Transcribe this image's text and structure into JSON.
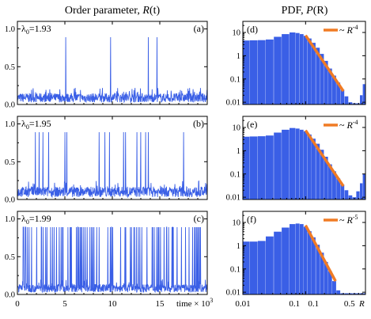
{
  "colors": {
    "series": "#3a5fe6",
    "fit": "#f07b24",
    "axis": "#000000"
  },
  "left_column": {
    "title_text": "Order parameter, ",
    "title_sym": "R",
    "title_arg": "(t)"
  },
  "right_column": {
    "title_text": "PDF, ",
    "title_sym": "P",
    "title_arg": "(R)"
  },
  "chart_data": [
    {
      "type": "line",
      "panel": "a",
      "label": "(a)",
      "lambda_label": "λ",
      "lambda_sub": "0",
      "lambda_value": "=1.93",
      "xlabel": "time × 10",
      "xlabel_exp": "3",
      "xlim": [
        0,
        20
      ],
      "ylim": [
        0,
        1.1
      ],
      "x_ticks": [
        "0",
        "5",
        "10",
        "15"
      ],
      "y_ticks": [
        "0.0",
        "0.5",
        "1.0"
      ],
      "baseline_mean": 0.07,
      "noise_max": 0.22,
      "spike_height": 0.89,
      "spikes_x": [
        5.1,
        9.8,
        13.8,
        14.7
      ],
      "secondary_peaks": [
        {
          "x": 3.4,
          "y": 0.2
        },
        {
          "x": 12.4,
          "y": 0.22
        },
        {
          "x": 17.3,
          "y": 0.18
        },
        {
          "x": 19.2,
          "y": 0.17
        }
      ]
    },
    {
      "type": "line",
      "panel": "b",
      "label": "(b)",
      "lambda_label": "λ",
      "lambda_sub": "0",
      "lambda_value": "=1.95",
      "xlim": [
        0,
        20
      ],
      "ylim": [
        0,
        1.1
      ],
      "x_ticks": [
        "0",
        "5",
        "10",
        "15"
      ],
      "y_ticks": [
        "0.0",
        "0.5",
        "1.0"
      ],
      "baseline_mean": 0.08,
      "noise_max": 0.25,
      "spike_height": 0.89,
      "spikes_x": [
        1.9,
        2.3,
        2.7,
        3.3,
        5.0,
        5.2,
        8.6,
        9.2,
        9.7,
        11.2,
        11.4,
        12.6,
        13.0,
        13.5,
        13.8,
        17.5
      ]
    },
    {
      "type": "line",
      "panel": "c",
      "label": "(c)",
      "lambda_label": "λ",
      "lambda_sub": "0",
      "lambda_value": "=1.99",
      "xlim": [
        0,
        20
      ],
      "ylim": [
        0,
        1.1
      ],
      "x_ticks": [
        "0",
        "5",
        "10",
        "15"
      ],
      "x_tick_labels_shown": true,
      "y_ticks": [
        "0.0",
        "0.5",
        "1.0"
      ],
      "baseline_mean": 0.07,
      "noise_max": 0.2,
      "spike_height": 0.89,
      "spike_count_approx": 95
    },
    {
      "type": "bar",
      "panel": "d",
      "label": "(d)",
      "legend": "~ ",
      "legend_sym": "R",
      "legend_exp": "-4",
      "x_scale": "log",
      "y_scale": "log",
      "xlim": [
        0.01,
        0.9
      ],
      "ylim": [
        0.008,
        30
      ],
      "y_ticks": [
        "0.01",
        "0.1",
        "1",
        "10"
      ],
      "bins_R": [
        0.011,
        0.015,
        0.02,
        0.027,
        0.036,
        0.048,
        0.064,
        0.075,
        0.087,
        0.1,
        0.116,
        0.135,
        0.157,
        0.183,
        0.212,
        0.247,
        0.287,
        0.334,
        0.388,
        0.45,
        0.52,
        0.6,
        0.69,
        0.78,
        0.85
      ],
      "density": [
        4.5,
        4.6,
        4.7,
        5.0,
        6.5,
        8.5,
        10.0,
        9.5,
        8.5,
        7.2,
        5.5,
        3.6,
        2.2,
        1.2,
        0.6,
        0.28,
        0.14,
        0.07,
        0.035,
        0.018,
        0.01,
        0.009,
        0.009,
        0.02,
        0.06
      ],
      "fit": {
        "exponent": -4,
        "R": [
          0.1,
          0.4
        ],
        "P": [
          7.5,
          0.03
        ]
      }
    },
    {
      "type": "bar",
      "panel": "e",
      "label": "(e)",
      "legend": "~ ",
      "legend_sym": "R",
      "legend_exp": "-4",
      "x_scale": "log",
      "y_scale": "log",
      "xlim": [
        0.01,
        0.9
      ],
      "ylim": [
        0.008,
        30
      ],
      "y_ticks": [
        "0.01",
        "0.1",
        "1",
        "10"
      ],
      "bins_R": [
        0.011,
        0.015,
        0.02,
        0.027,
        0.036,
        0.048,
        0.064,
        0.075,
        0.087,
        0.1,
        0.116,
        0.135,
        0.157,
        0.183,
        0.212,
        0.247,
        0.287,
        0.334,
        0.388,
        0.45,
        0.52,
        0.6,
        0.69,
        0.78,
        0.85
      ],
      "density": [
        4.0,
        4.1,
        4.2,
        4.5,
        6.0,
        8.0,
        9.5,
        9.0,
        8.0,
        6.8,
        5.0,
        3.3,
        2.0,
        1.1,
        0.55,
        0.26,
        0.13,
        0.065,
        0.035,
        0.02,
        0.012,
        0.01,
        0.018,
        0.04,
        0.1
      ],
      "fit": {
        "exponent": -4,
        "R": [
          0.1,
          0.4
        ],
        "P": [
          7.5,
          0.03
        ]
      }
    },
    {
      "type": "bar",
      "panel": "f",
      "label": "(f)",
      "legend": "~ ",
      "legend_sym": "R",
      "legend_exp": "-5",
      "xlabel": "R",
      "x_scale": "log",
      "y_scale": "log",
      "xlim": [
        0.01,
        0.9
      ],
      "ylim": [
        0.008,
        30
      ],
      "x_ticks": [
        "0.01",
        "0.1",
        "0.1",
        "0.5"
      ],
      "y_ticks": [
        "0.01",
        "0.1",
        "1",
        "10"
      ],
      "bins_R": [
        0.011,
        0.015,
        0.02,
        0.027,
        0.036,
        0.048,
        0.064,
        0.075,
        0.087,
        0.1,
        0.116,
        0.135,
        0.157,
        0.183,
        0.212,
        0.247,
        0.287,
        0.334,
        0.388,
        0.45,
        0.52,
        0.6,
        0.69,
        0.78,
        0.85
      ],
      "density": [
        1.5,
        1.5,
        1.6,
        2.5,
        4.0,
        6.0,
        8.5,
        9.0,
        8.5,
        6.5,
        4.2,
        2.3,
        1.1,
        0.5,
        0.2,
        0.08,
        0.03,
        0.012,
        0.009,
        0.009,
        0.009,
        0.009,
        0.009,
        0.009,
        0.009
      ],
      "fit": {
        "exponent": -5,
        "R": [
          0.1,
          0.3
        ],
        "P": [
          7.5,
          0.03
        ]
      }
    }
  ]
}
